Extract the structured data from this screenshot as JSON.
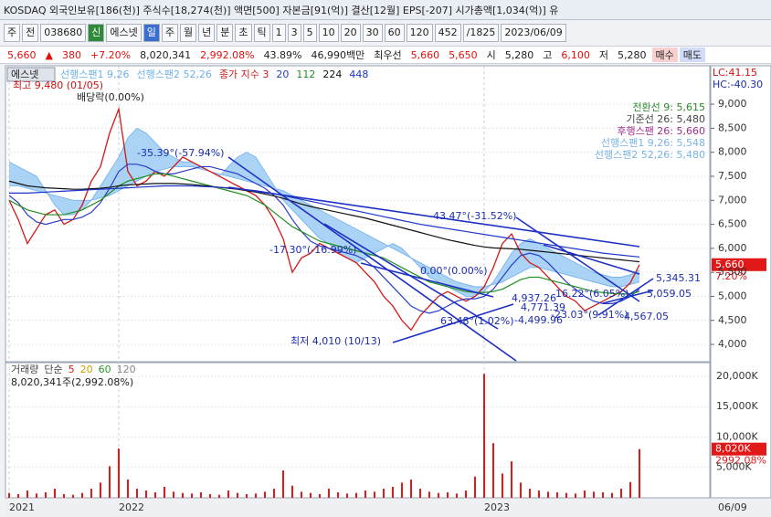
{
  "header": {
    "title": "KOSDAQ 외국인보유[186(천)] 주식수[18,274(천)] 액면[500] 자본금[91(억)] 결산[12월] EPS[-207] 시가총액[1,034(억)] 유",
    "toolbar": [
      {
        "text": "주"
      },
      {
        "text": "전"
      },
      {
        "text": "038680"
      },
      {
        "text": "신",
        "bg": "#2f8a3a",
        "color": "#ffffff"
      },
      {
        "text": "에스넷"
      },
      {
        "text": "일",
        "bg": "#3a6fd0",
        "color": "#ffffff"
      },
      {
        "text": "주"
      },
      {
        "text": "월"
      },
      {
        "text": "년"
      },
      {
        "text": "분"
      },
      {
        "text": "초"
      },
      {
        "text": "틱"
      },
      {
        "text": "1"
      },
      {
        "text": "3"
      },
      {
        "text": "5"
      },
      {
        "text": "10"
      },
      {
        "text": "20"
      },
      {
        "text": "30"
      },
      {
        "text": "60"
      },
      {
        "text": "120"
      },
      {
        "text": "452"
      },
      {
        "text": "/1825"
      },
      {
        "text": "2023/06/09"
      }
    ],
    "quote": [
      {
        "text": "5,660",
        "color": "#e01010"
      },
      {
        "text": "▲",
        "color": "#e01010"
      },
      {
        "text": "380",
        "color": "#e01010"
      },
      {
        "text": "+7.20%",
        "color": "#e01010"
      },
      {
        "text": "8,020,341"
      },
      {
        "text": "2,992.08%",
        "color": "#e01010"
      },
      {
        "text": "43.89%"
      },
      {
        "text": "46,990백만"
      },
      {
        "text": "최우선"
      },
      {
        "text": "5,660",
        "color": "#e01010"
      },
      {
        "text": "5,650",
        "color": "#e01010"
      },
      {
        "text": "시"
      },
      {
        "text": "5,280"
      },
      {
        "text": "고"
      },
      {
        "text": "6,100",
        "color": "#e01010"
      },
      {
        "text": "저"
      },
      {
        "text": "5,280"
      },
      {
        "text": "매수",
        "bg": "#f8d0d0"
      },
      {
        "text": "매도",
        "bg": "#d0dcf8"
      }
    ]
  },
  "chart_data": {
    "type": "line",
    "title": "에스넷",
    "categories": [
      "2021",
      null,
      null,
      null,
      null,
      null,
      null,
      null,
      null,
      null,
      null,
      null,
      "2022",
      null,
      null,
      null,
      null,
      null,
      null,
      null,
      null,
      null,
      null,
      null,
      null,
      null,
      null,
      null,
      null,
      null,
      null,
      null,
      null,
      null,
      null,
      null,
      null,
      null,
      null,
      null,
      null,
      null,
      null,
      null,
      null,
      null,
      null,
      null,
      null,
      null,
      null,
      null,
      "2023",
      null,
      null,
      null,
      null,
      null,
      null,
      null,
      null,
      null,
      null,
      null,
      null,
      null,
      null,
      null,
      null,
      null
    ],
    "date_label": "06/09",
    "ylim": [
      3640,
      9800
    ],
    "yticks": [
      {
        "value": 4000,
        "label": "4,000"
      },
      {
        "value": 4500,
        "label": "4,500"
      },
      {
        "value": 5000,
        "label": "5,000"
      },
      {
        "value": 5500,
        "label": "5,500"
      },
      {
        "value": 6000,
        "label": "6,000"
      },
      {
        "value": 6500,
        "label": "6,500"
      },
      {
        "value": 7000,
        "label": "7,000"
      },
      {
        "value": 7500,
        "label": "7,500"
      },
      {
        "value": 8000,
        "label": "8,000"
      },
      {
        "value": 8500,
        "label": "8,500"
      },
      {
        "value": 9000,
        "label": "9,000"
      }
    ],
    "grid": true,
    "cloud": {
      "color": "#8ec4f2",
      "series": [
        0,
        1
      ]
    },
    "series": [
      {
        "name": "선행스팬1 9,26",
        "color": "#6fb0ea",
        "values": [
          7800,
          7700,
          7600,
          7500,
          7200,
          6900,
          6700,
          6700,
          6800,
          7000,
          7300,
          7600,
          7900,
          8300,
          8500,
          8400,
          8200,
          8000,
          7900,
          7800,
          7800,
          7700,
          7600,
          7500,
          7700,
          7900,
          8000,
          7900,
          7600,
          7300,
          7000,
          6800,
          6600,
          6400,
          6200,
          6100,
          5900,
          5800,
          5700,
          5800,
          5900,
          6000,
          6100,
          6000,
          5800,
          5600,
          5400,
          5300,
          5200,
          5100,
          5000,
          5000,
          5100,
          5300,
          5600,
          5900,
          6100,
          6200,
          6100,
          6000,
          5900,
          5800,
          5700,
          5600,
          5500,
          5450,
          5400,
          5400,
          5450,
          5550
        ]
      },
      {
        "name": "선행스팬2 52,26",
        "color": "#6fb0ea",
        "values": [
          7300,
          7300,
          7250,
          7200,
          7150,
          7100,
          7050,
          7000,
          7000,
          7000,
          7050,
          7100,
          7200,
          7300,
          7400,
          7500,
          7600,
          7650,
          7700,
          7700,
          7700,
          7650,
          7600,
          7550,
          7500,
          7450,
          7400,
          7350,
          7300,
          7250,
          7200,
          7100,
          7000,
          6900,
          6800,
          6700,
          6600,
          6500,
          6400,
          6300,
          6200,
          6100,
          6000,
          5900,
          5800,
          5700,
          5600,
          5500,
          5400,
          5300,
          5250,
          5200,
          5200,
          5250,
          5300,
          5400,
          5500,
          5600,
          5600,
          5550,
          5500,
          5450,
          5400,
          5350,
          5300,
          5250,
          5200,
          5200,
          5250,
          5300
        ]
      },
      {
        "name": "종가 지수 3",
        "color": "#d01818",
        "values": [
          7000,
          6600,
          6100,
          6400,
          6700,
          6800,
          6500,
          6600,
          6900,
          7400,
          7700,
          8400,
          8900,
          7600,
          7300,
          7400,
          7600,
          7500,
          7700,
          7900,
          7800,
          7700,
          7600,
          7500,
          7400,
          7300,
          7200,
          7100,
          6900,
          6600,
          6200,
          5500,
          5800,
          5900,
          6100,
          6000,
          5900,
          5800,
          5700,
          5500,
          5300,
          5000,
          4800,
          4500,
          4300,
          4600,
          4800,
          5000,
          5100,
          5000,
          4900,
          5000,
          5200,
          5600,
          6100,
          6300,
          5900,
          5700,
          5600,
          5400,
          5200,
          5000,
          4900,
          4700,
          4800,
          4900,
          5000,
          5100,
          5280,
          5660
        ]
      },
      {
        "name": "20",
        "color": "#2a3cc8",
        "values": [
          7100,
          6950,
          6700,
          6550,
          6500,
          6550,
          6600,
          6600,
          6650,
          6750,
          6950,
          7250,
          7600,
          7750,
          7750,
          7700,
          7600,
          7550,
          7550,
          7600,
          7650,
          7700,
          7700,
          7650,
          7600,
          7550,
          7450,
          7350,
          7250,
          7100,
          6900,
          6600,
          6350,
          6150,
          6050,
          6000,
          5950,
          5900,
          5850,
          5750,
          5600,
          5400,
          5200,
          5000,
          4800,
          4700,
          4650,
          4700,
          4800,
          4900,
          4950,
          4950,
          5000,
          5150,
          5400,
          5650,
          5850,
          5900,
          5850,
          5700,
          5500,
          5300,
          5150,
          5000,
          4900,
          4850,
          4850,
          4900,
          5000,
          5150
        ]
      },
      {
        "name": "112",
        "color": "#1f8f1f",
        "values": [
          7000,
          6900,
          6800,
          6750,
          6700,
          6700,
          6700,
          6750,
          6800,
          6900,
          7000,
          7150,
          7300,
          7400,
          7450,
          7500,
          7550,
          7550,
          7500,
          7450,
          7400,
          7350,
          7300,
          7250,
          7200,
          7150,
          7100,
          7000,
          6900,
          6750,
          6600,
          6450,
          6350,
          6250,
          6150,
          6100,
          6050,
          6000,
          5950,
          5900,
          5850,
          5800,
          5700,
          5600,
          5500,
          5400,
          5300,
          5250,
          5200,
          5150,
          5100,
          5080,
          5080,
          5100,
          5150,
          5250,
          5350,
          5400,
          5400,
          5350,
          5300,
          5250,
          5200,
          5150,
          5100,
          5080,
          5060,
          5050,
          5050,
          5100
        ]
      },
      {
        "name": "224",
        "color": "#111111",
        "values": [
          7400,
          7350,
          7300,
          7280,
          7260,
          7250,
          7240,
          7230,
          7230,
          7240,
          7250,
          7270,
          7300,
          7320,
          7330,
          7340,
          7350,
          7350,
          7350,
          7340,
          7330,
          7310,
          7290,
          7270,
          7250,
          7230,
          7200,
          7170,
          7130,
          7090,
          7040,
          6980,
          6920,
          6870,
          6830,
          6790,
          6750,
          6710,
          6670,
          6630,
          6580,
          6530,
          6480,
          6430,
          6380,
          6330,
          6280,
          6230,
          6180,
          6140,
          6100,
          6060,
          6030,
          6010,
          6000,
          5990,
          5980,
          5960,
          5940,
          5920,
          5900,
          5880,
          5860,
          5840,
          5820,
          5800,
          5780,
          5760,
          5740,
          5720
        ]
      },
      {
        "name": "448",
        "color": "#1c34c8",
        "values": [
          7150,
          7150,
          7150,
          7160,
          7170,
          7180,
          7190,
          7200,
          7210,
          7220,
          7230,
          7240,
          7250,
          7260,
          7270,
          7280,
          7290,
          7300,
          7300,
          7300,
          7300,
          7290,
          7280,
          7270,
          7260,
          7240,
          7220,
          7200,
          7170,
          7140,
          7100,
          7060,
          7020,
          6980,
          6940,
          6900,
          6860,
          6820,
          6780,
          6740,
          6700,
          6660,
          6620,
          6580,
          6540,
          6500,
          6470,
          6440,
          6410,
          6380,
          6350,
          6320,
          6290,
          6260,
          6230,
          6200,
          6170,
          6140,
          6110,
          6080,
          6050,
          6020,
          5990,
          5960,
          5930,
          5900,
          5880,
          5860,
          5840,
          5820
        ]
      }
    ],
    "annotations": [
      {
        "text": "최고 9,480 (01/05)",
        "color": "#d01010"
      },
      {
        "text": "배당락(0.00%)",
        "color": "#222222"
      },
      {
        "text": "-35.39°(-57.94%)",
        "color": "#1c2cb0"
      },
      {
        "text": "-43.47°(-31.52%)",
        "color": "#1c2cb0"
      },
      {
        "text": "-17.30°(-16.99%)",
        "color": "#1c2cb0"
      },
      {
        "text": "0.00°(0.00%)",
        "color": "#1c2cb0"
      },
      {
        "text": "4,937.26",
        "color": "#1c2cb0"
      },
      {
        "text": "4,771.39",
        "color": "#1c2cb0"
      },
      {
        "text": "-4,499.96",
        "color": "#1c2cb0"
      },
      {
        "text": "63.48°(1.02%)",
        "color": "#1c2cb0"
      },
      {
        "text": "16.22°(6.05%)",
        "color": "#1c2cb0"
      },
      {
        "text": "-23.03°(9.91%)",
        "color": "#1c2cb0"
      },
      {
        "text": "5,345.31",
        "color": "#1c2cb0"
      },
      {
        "text": "5,059.05",
        "color": "#1c2cb0"
      },
      {
        "text": "4,567.05",
        "color": "#1c2cb0"
      },
      {
        "text": "최저 4,010 (10/13)",
        "color": "#1c2cb0"
      }
    ],
    "info": [
      {
        "text": "전환선 9: 5,615",
        "color": "#2a8a2a"
      },
      {
        "text": "기준선 26: 5,480",
        "color": "#444444"
      },
      {
        "text": "후행스팬 26: 5,660",
        "color": "#a0308a"
      },
      {
        "text": "선행스팬1 9,26: 5,548",
        "color": "#7ab4e4"
      },
      {
        "text": "선행스팬2 52,26: 5,480",
        "color": "#7ab4e4"
      }
    ],
    "lc_label": "LC:41.15",
    "hc_label": "HC:-40.30",
    "price_tag": "5,660",
    "change_tag": "7.20%",
    "volume": {
      "name": "거래량",
      "color": "#e01818",
      "ma_label": "단순",
      "ma": [
        {
          "text": "5",
          "color": "#d02020"
        },
        {
          "text": "20",
          "color": "#c8a000"
        },
        {
          "text": "60",
          "color": "#2a9a2a"
        },
        {
          "text": "120",
          "color": "#888888"
        }
      ],
      "summary": "8,020,341주(2,992.08%)",
      "tag": "8,020K",
      "tag2": "2992.08%",
      "ylim": [
        0,
        22100
      ],
      "yticks": [
        {
          "value": 5000,
          "label": "5,000K"
        },
        {
          "value": 10000,
          "label": "10,000K"
        },
        {
          "value": 15000,
          "label": "15,000K"
        },
        {
          "value": 20000,
          "label": "20,000K"
        }
      ],
      "values": [
        800,
        600,
        1200,
        700,
        900,
        1500,
        600,
        500,
        800,
        1500,
        2500,
        5200,
        8100,
        3000,
        1500,
        1200,
        900,
        1800,
        1000,
        800,
        700,
        900,
        600,
        500,
        1200,
        800,
        600,
        700,
        1000,
        1500,
        4500,
        2000,
        1000,
        800,
        600,
        1500,
        900,
        700,
        800,
        1200,
        1000,
        1500,
        1800,
        2500,
        3000,
        1500,
        1000,
        800,
        900,
        700,
        1200,
        3500,
        20400,
        9000,
        4000,
        6000,
        2500,
        1500,
        1200,
        1000,
        900,
        800,
        700,
        1200,
        1000,
        900,
        800,
        1500,
        2600,
        8020
      ]
    }
  }
}
